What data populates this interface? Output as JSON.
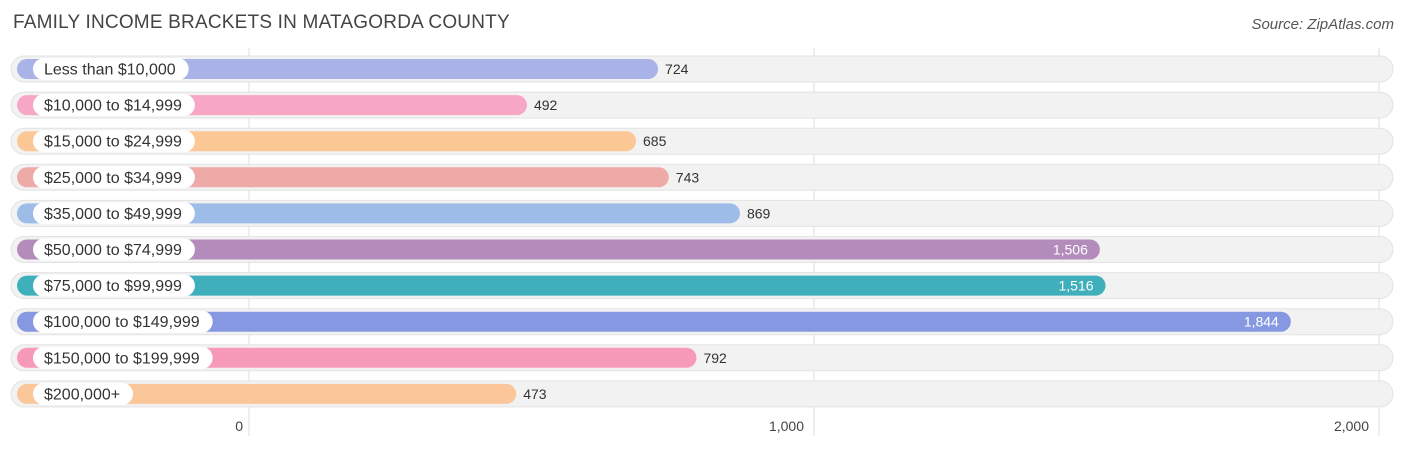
{
  "header": {
    "title": "FAMILY INCOME BRACKETS IN MATAGORDA COUNTY",
    "source": "Source: ZipAtlas.com"
  },
  "chart_data": {
    "type": "bar",
    "orientation": "horizontal",
    "title": "FAMILY INCOME BRACKETS IN MATAGORDA COUNTY",
    "categories": [
      "Less than $10,000",
      "$10,000 to $14,999",
      "$15,000 to $24,999",
      "$25,000 to $34,999",
      "$35,000 to $49,999",
      "$50,000 to $74,999",
      "$75,000 to $99,999",
      "$100,000 to $149,999",
      "$150,000 to $199,999",
      "$200,000+"
    ],
    "values": [
      724,
      492,
      685,
      743,
      869,
      1506,
      1516,
      1844,
      792,
      473
    ],
    "value_labels": [
      "724",
      "492",
      "685",
      "743",
      "869",
      "1,506",
      "1,516",
      "1,844",
      "792",
      "473"
    ],
    "colors": [
      "#a9b3e8",
      "#f7a6c4",
      "#fbc794",
      "#eeaaa7",
      "#9dbde8",
      "#b48cbc",
      "#3fb0bb",
      "#8798e2",
      "#f79ab9",
      "#fbc79a"
    ],
    "xlim": [
      0,
      2000
    ],
    "ticks": [
      0,
      1000,
      2000
    ],
    "tick_labels": [
      "0",
      "1,000",
      "2,000"
    ],
    "grid": true
  }
}
